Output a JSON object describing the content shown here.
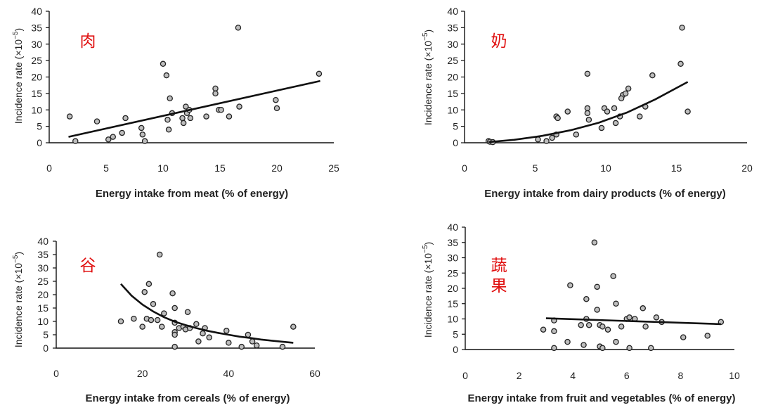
{
  "chart_data": [
    {
      "type": "scatter",
      "annotation": [
        "肉"
      ],
      "ylabel": "Incidence rate (×10⁻⁵)",
      "ylabel_main": "Incidence rate (",
      "ylabel_times": "×",
      "ylabel_base": "10",
      "ylabel_exp": "−5",
      "ylabel_close": ")",
      "xlabel": "Energy intake from meat (% of energy)",
      "xlim": [
        0,
        25
      ],
      "ylim": [
        0,
        40
      ],
      "xticks": [
        0,
        5,
        10,
        15,
        20,
        25
      ],
      "yticks": [
        0,
        5,
        10,
        15,
        20,
        25,
        30,
        35,
        40
      ],
      "points": [
        [
          1.8,
          8
        ],
        [
          2.3,
          0.5
        ],
        [
          4.2,
          6.5
        ],
        [
          5.2,
          1
        ],
        [
          5.6,
          1.8
        ],
        [
          6.4,
          3
        ],
        [
          6.7,
          7.5
        ],
        [
          8.1,
          4.5
        ],
        [
          8.2,
          2.5
        ],
        [
          8.4,
          0.5
        ],
        [
          10,
          24
        ],
        [
          10.3,
          20.5
        ],
        [
          10.5,
          4
        ],
        [
          10.6,
          13.5
        ],
        [
          10.8,
          9
        ],
        [
          10.4,
          7
        ],
        [
          11.7,
          7.5
        ],
        [
          11.8,
          6
        ],
        [
          12,
          11
        ],
        [
          12.1,
          9
        ],
        [
          12.4,
          7.5
        ],
        [
          12.3,
          10
        ],
        [
          13.8,
          8
        ],
        [
          14.6,
          16.5
        ],
        [
          14.6,
          15
        ],
        [
          14.9,
          10
        ],
        [
          15.1,
          10
        ],
        [
          15.8,
          8
        ],
        [
          16.6,
          35
        ],
        [
          16.7,
          11
        ],
        [
          19.9,
          13
        ],
        [
          20,
          10.5
        ],
        [
          23.7,
          21
        ]
      ],
      "trend_points": [
        [
          1.7,
          1.8
        ],
        [
          23.8,
          18.8
        ]
      ]
    },
    {
      "type": "scatter",
      "annotation": [
        "奶"
      ],
      "ylabel": "Incidence rate (×10⁻⁵)",
      "ylabel_main": "Incidence rate (",
      "ylabel_times": "×",
      "ylabel_base": "10",
      "ylabel_exp": "−5",
      "ylabel_close": ")",
      "xlabel": "Energy intake from dairy products (% of energy)",
      "xlim": [
        0,
        20
      ],
      "ylim": [
        0,
        40
      ],
      "xticks": [
        0,
        5,
        10,
        15,
        20
      ],
      "yticks": [
        0,
        5,
        10,
        15,
        20,
        25,
        30,
        35,
        40
      ],
      "points": [
        [
          1.7,
          0.5
        ],
        [
          1.8,
          0.3
        ],
        [
          2,
          0.2
        ],
        [
          5.2,
          1
        ],
        [
          5.8,
          0.5
        ],
        [
          6.2,
          1.5
        ],
        [
          6.5,
          2.5
        ],
        [
          6.5,
          8
        ],
        [
          6.6,
          7.5
        ],
        [
          7.3,
          9.5
        ],
        [
          7.9,
          2.5
        ],
        [
          8.7,
          10.5
        ],
        [
          8.7,
          9
        ],
        [
          8.8,
          7
        ],
        [
          8.7,
          21
        ],
        [
          9.7,
          4.5
        ],
        [
          9.9,
          10.5
        ],
        [
          10.1,
          9.5
        ],
        [
          10.6,
          10.5
        ],
        [
          10.7,
          6
        ],
        [
          11,
          8
        ],
        [
          11.2,
          14.5
        ],
        [
          11.1,
          13.5
        ],
        [
          11.6,
          16.5
        ],
        [
          11.4,
          15
        ],
        [
          12.4,
          8
        ],
        [
          12.8,
          11
        ],
        [
          13.3,
          20.5
        ],
        [
          15.3,
          24
        ],
        [
          15.4,
          35
        ],
        [
          15.8,
          9.5
        ]
      ],
      "trend_points": [
        [
          1.7,
          0.2
        ],
        [
          3.5,
          0.9
        ],
        [
          5.5,
          2.1
        ],
        [
          7.5,
          3.8
        ],
        [
          9.5,
          6.1
        ],
        [
          11.5,
          9.2
        ],
        [
          13.5,
          13.2
        ],
        [
          15.8,
          18.5
        ]
      ]
    },
    {
      "type": "scatter",
      "annotation": [
        "谷"
      ],
      "ylabel": "Incidence rate (×10⁻⁵)",
      "ylabel_main": "Incidence rate (",
      "ylabel_times": "×",
      "ylabel_base": "10",
      "ylabel_exp": "−5",
      "ylabel_close": ")",
      "xlabel": "Energy intake from cereals (% of energy)",
      "xlim": [
        0,
        60
      ],
      "ylim": [
        0,
        40
      ],
      "xticks": [
        0,
        20,
        40,
        60
      ],
      "yticks": [
        0,
        5,
        10,
        15,
        20,
        25,
        30,
        35,
        40
      ],
      "points": [
        [
          15,
          10
        ],
        [
          18,
          11
        ],
        [
          20,
          8
        ],
        [
          20.5,
          21
        ],
        [
          21,
          11
        ],
        [
          21.5,
          24
        ],
        [
          22,
          10.5
        ],
        [
          22.5,
          16.5
        ],
        [
          23.5,
          10.5
        ],
        [
          24,
          35
        ],
        [
          24.5,
          8
        ],
        [
          25,
          13
        ],
        [
          27,
          20.5
        ],
        [
          27.5,
          15
        ],
        [
          27.5,
          9.5
        ],
        [
          27.5,
          6
        ],
        [
          27.5,
          5
        ],
        [
          27.5,
          0.5
        ],
        [
          28.5,
          7.5
        ],
        [
          29.5,
          8
        ],
        [
          30,
          7
        ],
        [
          30.5,
          13.5
        ],
        [
          31,
          7.5
        ],
        [
          32.5,
          9
        ],
        [
          33,
          2.5
        ],
        [
          34,
          5.5
        ],
        [
          34.5,
          7.5
        ],
        [
          35.5,
          4
        ],
        [
          39.5,
          6.5
        ],
        [
          40,
          2
        ],
        [
          43,
          0.5
        ],
        [
          44.5,
          5
        ],
        [
          45.5,
          2.5
        ],
        [
          46.5,
          1
        ],
        [
          52.5,
          0.5
        ],
        [
          55,
          8
        ]
      ],
      "trend_points": [
        [
          15,
          24
        ],
        [
          17.5,
          19.6
        ],
        [
          20,
          16.3
        ],
        [
          22.5,
          13.7
        ],
        [
          25,
          11.6
        ],
        [
          27.5,
          9.9
        ],
        [
          30,
          8.6
        ],
        [
          32.5,
          7.5
        ],
        [
          35,
          6.5
        ],
        [
          37.5,
          5.7
        ],
        [
          40,
          5
        ],
        [
          42.5,
          4.3
        ],
        [
          45,
          3.8
        ],
        [
          47.5,
          3.2
        ],
        [
          50,
          2.8
        ],
        [
          52.5,
          2.4
        ],
        [
          55,
          2
        ]
      ]
    },
    {
      "type": "scatter",
      "annotation": [
        "蔬",
        "果"
      ],
      "ylabel": "Incidence rate (×10⁻⁵)",
      "ylabel_main": "Incidence rate (",
      "ylabel_times": "×",
      "ylabel_base": "10",
      "ylabel_exp": "−5",
      "ylabel_close": ")",
      "xlabel": "Energy intake from fruit and vegetables (% of energy)",
      "xlim": [
        0,
        10
      ],
      "ylim": [
        0,
        40
      ],
      "xticks": [
        0,
        2,
        4,
        6,
        8,
        10
      ],
      "yticks": [
        "0",
        "5",
        "10",
        "15",
        "20",
        "25",
        "30",
        "35",
        "40"
      ],
      "points": [
        [
          2.9,
          6.5
        ],
        [
          3.3,
          9.5
        ],
        [
          3.3,
          6
        ],
        [
          3.3,
          0.5
        ],
        [
          3.8,
          2.5
        ],
        [
          3.9,
          21
        ],
        [
          4.3,
          8
        ],
        [
          4.4,
          1.5
        ],
        [
          4.5,
          16.5
        ],
        [
          4.5,
          10
        ],
        [
          4.6,
          8
        ],
        [
          4.8,
          35
        ],
        [
          4.9,
          20.5
        ],
        [
          4.9,
          13
        ],
        [
          5,
          8
        ],
        [
          5.1,
          7.5
        ],
        [
          5,
          1
        ],
        [
          5.1,
          0.5
        ],
        [
          5.3,
          6.5
        ],
        [
          5.5,
          24
        ],
        [
          5.6,
          15
        ],
        [
          5.6,
          2.5
        ],
        [
          5.8,
          7.5
        ],
        [
          6,
          10
        ],
        [
          6.1,
          10.5
        ],
        [
          6.1,
          0.5
        ],
        [
          6.3,
          10
        ],
        [
          6.6,
          13.5
        ],
        [
          6.7,
          7.5
        ],
        [
          6.9,
          0.5
        ],
        [
          7.1,
          10.5
        ],
        [
          7.3,
          9
        ],
        [
          8.1,
          4
        ],
        [
          9,
          4.5
        ],
        [
          9.5,
          9
        ]
      ],
      "trend_points": [
        [
          3,
          10.2
        ],
        [
          9.5,
          8.3
        ]
      ]
    }
  ]
}
